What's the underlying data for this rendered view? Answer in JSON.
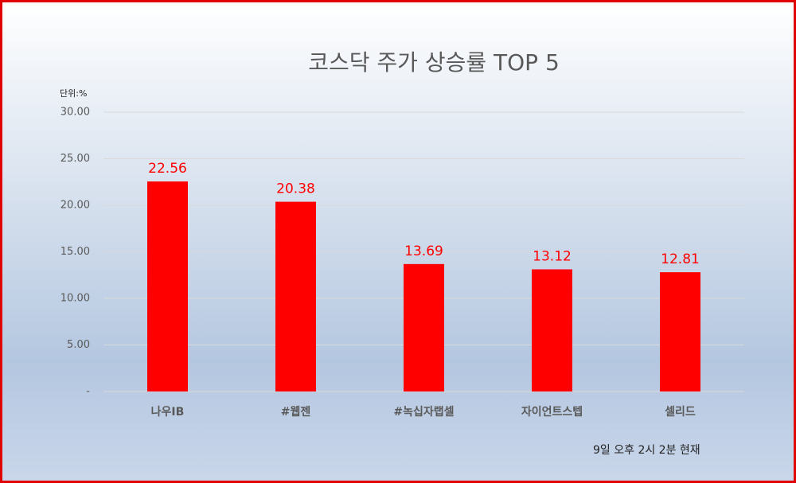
{
  "chart_data": {
    "type": "bar",
    "title": "코스닥 주가 상승률 TOP 5",
    "unit_label": "단위:%",
    "note": "9일 오후 2시 2분 현재",
    "categories": [
      "나우IB",
      "#웹젠",
      "#녹십자랩셀",
      "자이언트스텝",
      "셀리드"
    ],
    "values": [
      22.56,
      20.38,
      13.69,
      13.12,
      12.81
    ],
    "color": "#ff0000",
    "ylim": [
      0,
      30
    ],
    "yticks": [
      {
        "value": 0,
        "label": "-"
      },
      {
        "value": 5,
        "label": "5.00"
      },
      {
        "value": 10,
        "label": "10.00"
      },
      {
        "value": 15,
        "label": "15.00"
      },
      {
        "value": 20,
        "label": "20.00"
      },
      {
        "value": 25,
        "label": "25.00"
      },
      {
        "value": 30,
        "label": "30.00"
      }
    ],
    "grid": true
  }
}
